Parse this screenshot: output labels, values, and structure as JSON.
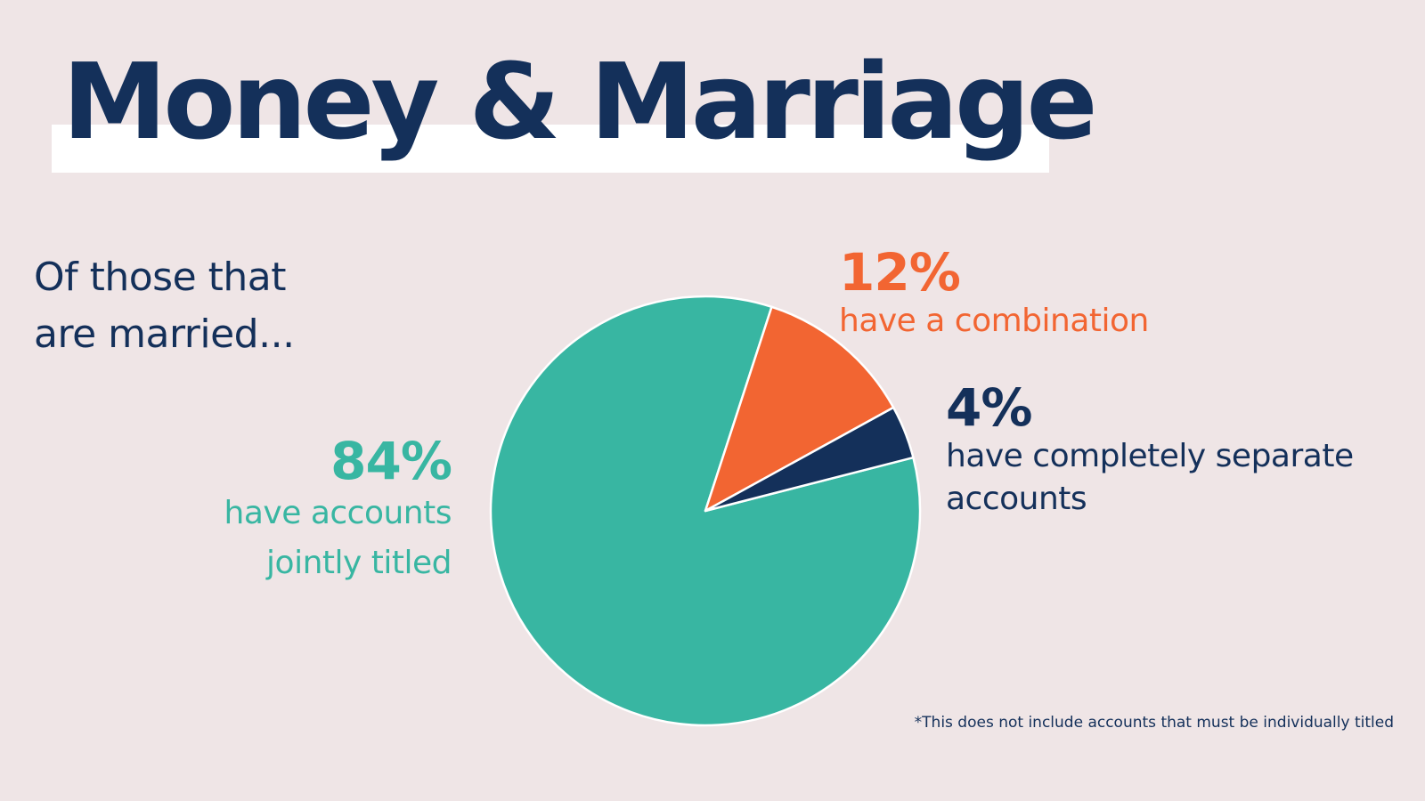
{
  "title": "Money & Marriage",
  "intro": [
    "Of those that",
    "are married..."
  ],
  "footnote": "*This does not include accounts that must be individually titled",
  "colors": {
    "background": "#efe5e6",
    "navy": "#14305a",
    "teal": "#38b6a2",
    "orange": "#f26532"
  },
  "chart_data": {
    "type": "pie",
    "slices": [
      {
        "label": "have accounts jointly titled",
        "value": 84,
        "display": "84%",
        "desc_lines": [
          "have accounts",
          "jointly titled"
        ],
        "color": "#38b6a2"
      },
      {
        "label": "have a combination",
        "value": 12,
        "display": "12%",
        "desc_lines": [
          "have a combination"
        ],
        "color": "#f26532"
      },
      {
        "label": "have completely separate accounts",
        "value": 4,
        "display": "4%",
        "desc_lines": [
          "have completely separate",
          "accounts"
        ],
        "color": "#14305a"
      }
    ],
    "legend": "none"
  }
}
